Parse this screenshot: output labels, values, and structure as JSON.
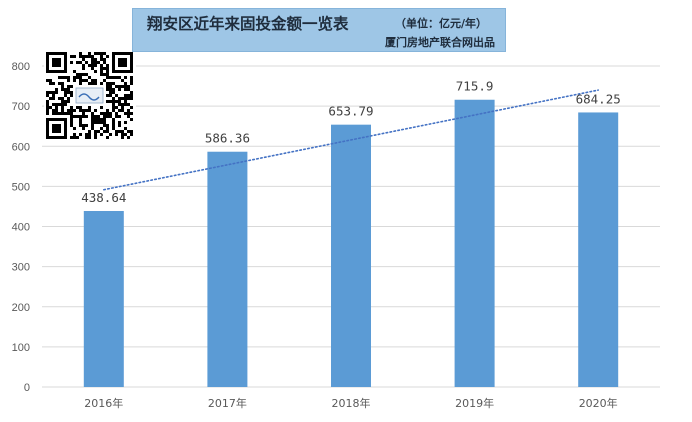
{
  "title": {
    "main": "翔安区近年来固投金额一览表",
    "unit": "（单位：亿元/年）",
    "source": "厦门房地产联合网出品"
  },
  "qr_code": {
    "icon": "qr-code-icon"
  },
  "colors": {
    "bar": "#5b9bd5",
    "trendline": "#4472c4",
    "title_bg": "#9ec6e6",
    "gridline": "#d9d9d9"
  },
  "chart_data": {
    "type": "bar",
    "categories": [
      "2016年",
      "2017年",
      "2018年",
      "2019年",
      "2020年"
    ],
    "values": [
      438.64,
      586.36,
      653.79,
      715.9,
      684.25
    ],
    "data_labels": [
      "438.64",
      "586.36",
      "653.79",
      "715.9",
      "684.25"
    ],
    "ylim": [
      0,
      800
    ],
    "yticks": [
      0,
      100,
      200,
      300,
      400,
      500,
      600,
      700,
      800
    ],
    "gridlines": true,
    "trendline": {
      "type": "linear",
      "style": "dotted"
    },
    "legend": "none"
  }
}
